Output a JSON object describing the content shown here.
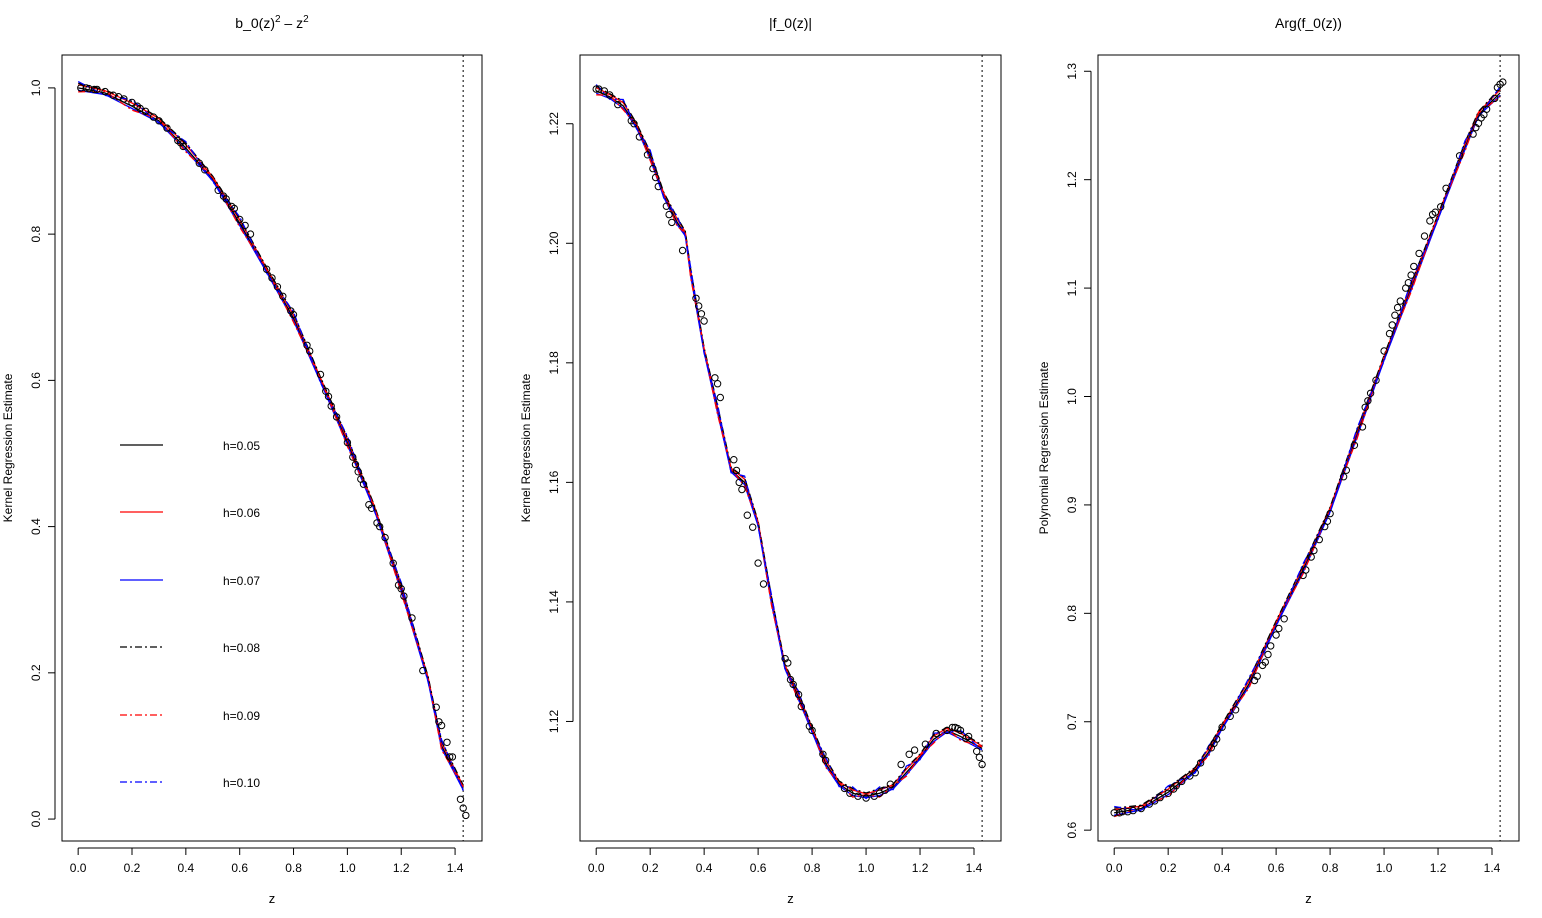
{
  "chart_data": [
    {
      "type": "line",
      "title": "b_0(z)^2 - z^2",
      "xlabel": "z",
      "ylabel": "Kernel Regression Estimate",
      "xlim": [
        -0.06,
        1.5
      ],
      "ylim": [
        -0.03,
        1.045
      ],
      "xticks": [
        "0.0",
        "0.2",
        "0.4",
        "0.6",
        "0.8",
        "1.0",
        "1.2",
        "1.4"
      ],
      "yticks": [
        "0.0",
        "0.2",
        "0.4",
        "0.6",
        "0.8",
        "1.0"
      ],
      "vline": 1.43,
      "legend": {
        "placement": "left-middle",
        "entries": [
          "h=0.05",
          "h=0.06",
          "h=0.07",
          "h=0.08",
          "h=0.09",
          "h=0.10"
        ]
      },
      "series": [
        {
          "name": "h=0.05",
          "color": "#000000",
          "dash": "solid"
        },
        {
          "name": "h=0.06",
          "color": "#ff0000",
          "dash": "solid"
        },
        {
          "name": "h=0.07",
          "color": "#0000ff",
          "dash": "solid"
        },
        {
          "name": "h=0.08",
          "color": "#000000",
          "dash": "dashdot"
        },
        {
          "name": "h=0.09",
          "color": "#ff0000",
          "dash": "dashdot"
        },
        {
          "name": "h=0.10",
          "color": "#0000ff",
          "dash": "dashdot"
        }
      ],
      "curve": {
        "x": [
          0.0,
          0.1,
          0.2,
          0.3,
          0.4,
          0.5,
          0.6,
          0.7,
          0.8,
          0.9,
          1.0,
          1.1,
          1.2,
          1.3,
          1.35,
          1.43
        ],
        "y": [
          1.0,
          0.993,
          0.975,
          0.955,
          0.918,
          0.875,
          0.815,
          0.75,
          0.685,
          0.6,
          0.515,
          0.425,
          0.315,
          0.19,
          0.1,
          0.042
        ]
      },
      "points": [
        [
          0.01,
          1.0
        ],
        [
          0.03,
          1.0
        ],
        [
          0.04,
          0.999
        ],
        [
          0.06,
          0.998
        ],
        [
          0.07,
          0.998
        ],
        [
          0.1,
          0.995
        ],
        [
          0.13,
          0.99
        ],
        [
          0.15,
          0.988
        ],
        [
          0.17,
          0.985
        ],
        [
          0.2,
          0.98
        ],
        [
          0.22,
          0.975
        ],
        [
          0.23,
          0.972
        ],
        [
          0.25,
          0.968
        ],
        [
          0.28,
          0.96
        ],
        [
          0.3,
          0.955
        ],
        [
          0.33,
          0.945
        ],
        [
          0.37,
          0.928
        ],
        [
          0.38,
          0.925
        ],
        [
          0.39,
          0.92
        ],
        [
          0.45,
          0.897
        ],
        [
          0.47,
          0.888
        ],
        [
          0.52,
          0.86
        ],
        [
          0.54,
          0.852
        ],
        [
          0.55,
          0.848
        ],
        [
          0.57,
          0.838
        ],
        [
          0.58,
          0.835
        ],
        [
          0.6,
          0.82
        ],
        [
          0.62,
          0.812
        ],
        [
          0.64,
          0.8
        ],
        [
          0.7,
          0.752
        ],
        [
          0.72,
          0.74
        ],
        [
          0.74,
          0.728
        ],
        [
          0.76,
          0.715
        ],
        [
          0.79,
          0.695
        ],
        [
          0.8,
          0.69
        ],
        [
          0.85,
          0.648
        ],
        [
          0.86,
          0.64
        ],
        [
          0.9,
          0.608
        ],
        [
          0.92,
          0.585
        ],
        [
          0.93,
          0.578
        ],
        [
          0.94,
          0.565
        ],
        [
          0.96,
          0.55
        ],
        [
          1.0,
          0.515
        ],
        [
          1.02,
          0.495
        ],
        [
          1.03,
          0.485
        ],
        [
          1.04,
          0.475
        ],
        [
          1.05,
          0.465
        ],
        [
          1.06,
          0.458
        ],
        [
          1.08,
          0.43
        ],
        [
          1.09,
          0.425
        ],
        [
          1.11,
          0.405
        ],
        [
          1.12,
          0.4
        ],
        [
          1.14,
          0.385
        ],
        [
          1.17,
          0.35
        ],
        [
          1.19,
          0.32
        ],
        [
          1.2,
          0.315
        ],
        [
          1.21,
          0.305
        ],
        [
          1.24,
          0.275
        ],
        [
          1.28,
          0.203
        ],
        [
          1.33,
          0.153
        ],
        [
          1.34,
          0.133
        ],
        [
          1.35,
          0.128
        ],
        [
          1.37,
          0.105
        ],
        [
          1.38,
          0.085
        ],
        [
          1.39,
          0.085
        ],
        [
          1.42,
          0.027
        ],
        [
          1.43,
          0.015
        ],
        [
          1.44,
          0.005
        ]
      ]
    },
    {
      "type": "line",
      "title": "|f_0(z)|",
      "xlabel": "z",
      "ylabel": "Kernel Regression Estimate",
      "xlim": [
        -0.06,
        1.5
      ],
      "ylim": [
        1.1,
        1.2315
      ],
      "xticks": [
        "0.0",
        "0.2",
        "0.4",
        "0.6",
        "0.8",
        "1.0",
        "1.2",
        "1.4"
      ],
      "yticks": [
        "1.12",
        "1.14",
        "1.16",
        "1.18",
        "1.20",
        "1.22"
      ],
      "vline": 1.43,
      "curve": {
        "x": [
          0.0,
          0.05,
          0.1,
          0.15,
          0.2,
          0.25,
          0.3,
          0.33,
          0.35,
          0.4,
          0.45,
          0.5,
          0.55,
          0.6,
          0.65,
          0.7,
          0.75,
          0.8,
          0.85,
          0.9,
          0.95,
          1.0,
          1.05,
          1.1,
          1.15,
          1.2,
          1.25,
          1.3,
          1.35,
          1.43
        ],
        "y": [
          1.2255,
          1.2245,
          1.223,
          1.2195,
          1.2145,
          1.208,
          1.2035,
          1.2015,
          1.195,
          1.182,
          1.172,
          1.162,
          1.16,
          1.153,
          1.14,
          1.129,
          1.124,
          1.1185,
          1.113,
          1.1095,
          1.108,
          1.1075,
          1.108,
          1.109,
          1.1115,
          1.114,
          1.117,
          1.1185,
          1.1175,
          1.1155
        ]
      },
      "points": [
        [
          0.0,
          1.2258
        ],
        [
          0.01,
          1.2258
        ],
        [
          0.03,
          1.2255
        ],
        [
          0.05,
          1.2248
        ],
        [
          0.08,
          1.2232
        ],
        [
          0.13,
          1.2205
        ],
        [
          0.14,
          1.22
        ],
        [
          0.16,
          1.2178
        ],
        [
          0.19,
          1.2148
        ],
        [
          0.21,
          1.2125
        ],
        [
          0.22,
          1.211
        ],
        [
          0.23,
          1.2095
        ],
        [
          0.26,
          1.2062
        ],
        [
          0.27,
          1.2048
        ],
        [
          0.28,
          1.2035
        ],
        [
          0.32,
          1.1988
        ],
        [
          0.37,
          1.1908
        ],
        [
          0.38,
          1.1895
        ],
        [
          0.39,
          1.1882
        ],
        [
          0.4,
          1.187
        ],
        [
          0.44,
          1.1775
        ],
        [
          0.45,
          1.1765
        ],
        [
          0.46,
          1.1742
        ],
        [
          0.51,
          1.1638
        ],
        [
          0.52,
          1.162
        ],
        [
          0.53,
          1.16
        ],
        [
          0.54,
          1.1588
        ],
        [
          0.56,
          1.1545
        ],
        [
          0.58,
          1.1525
        ],
        [
          0.6,
          1.1465
        ],
        [
          0.62,
          1.143
        ],
        [
          0.7,
          1.1305
        ],
        [
          0.71,
          1.1298
        ],
        [
          0.72,
          1.127
        ],
        [
          0.73,
          1.1262
        ],
        [
          0.75,
          1.1245
        ],
        [
          0.76,
          1.1225
        ],
        [
          0.79,
          1.1192
        ],
        [
          0.8,
          1.1185
        ],
        [
          0.84,
          1.1145
        ],
        [
          0.85,
          1.1135
        ],
        [
          0.92,
          1.1088
        ],
        [
          0.94,
          1.108
        ],
        [
          0.97,
          1.1075
        ],
        [
          1.0,
          1.1072
        ],
        [
          1.03,
          1.1075
        ],
        [
          1.05,
          1.108
        ],
        [
          1.07,
          1.1085
        ],
        [
          1.09,
          1.1095
        ],
        [
          1.13,
          1.1128
        ],
        [
          1.16,
          1.1145
        ],
        [
          1.18,
          1.1152
        ],
        [
          1.22,
          1.1162
        ],
        [
          1.26,
          1.118
        ],
        [
          1.3,
          1.1185
        ],
        [
          1.32,
          1.119
        ],
        [
          1.33,
          1.119
        ],
        [
          1.34,
          1.1188
        ],
        [
          1.35,
          1.1185
        ],
        [
          1.37,
          1.1172
        ],
        [
          1.38,
          1.1175
        ],
        [
          1.41,
          1.115
        ],
        [
          1.42,
          1.114
        ],
        [
          1.43,
          1.1128
        ]
      ]
    },
    {
      "type": "line",
      "title": "Arg(f_0(z))",
      "xlabel": "z",
      "ylabel": "Polynomial Regression Estimate",
      "xlim": [
        -0.06,
        1.5
      ],
      "ylim": [
        0.59,
        1.315
      ],
      "xticks": [
        "0.0",
        "0.2",
        "0.4",
        "0.6",
        "0.8",
        "1.0",
        "1.2",
        "1.4"
      ],
      "yticks": [
        "0.6",
        "0.7",
        "0.8",
        "0.9",
        "1.0",
        "1.1",
        "1.2",
        "1.3"
      ],
      "vline": 1.43,
      "curve": {
        "x": [
          0.0,
          0.1,
          0.2,
          0.3,
          0.35,
          0.4,
          0.5,
          0.6,
          0.7,
          0.8,
          0.9,
          1.0,
          1.1,
          1.2,
          1.3,
          1.35,
          1.43
        ],
        "y": [
          0.616,
          0.62,
          0.635,
          0.655,
          0.672,
          0.695,
          0.735,
          0.79,
          0.84,
          0.895,
          0.965,
          1.035,
          1.1,
          1.165,
          1.23,
          1.26,
          1.28
        ]
      },
      "points": [
        [
          0.0,
          0.616
        ],
        [
          0.02,
          0.616
        ],
        [
          0.03,
          0.617
        ],
        [
          0.05,
          0.617
        ],
        [
          0.07,
          0.618
        ],
        [
          0.1,
          0.62
        ],
        [
          0.13,
          0.624
        ],
        [
          0.15,
          0.627
        ],
        [
          0.17,
          0.63
        ],
        [
          0.2,
          0.634
        ],
        [
          0.22,
          0.638
        ],
        [
          0.23,
          0.641
        ],
        [
          0.25,
          0.645
        ],
        [
          0.28,
          0.65
        ],
        [
          0.3,
          0.653
        ],
        [
          0.32,
          0.662
        ],
        [
          0.36,
          0.676
        ],
        [
          0.37,
          0.68
        ],
        [
          0.38,
          0.684
        ],
        [
          0.4,
          0.695
        ],
        [
          0.43,
          0.705
        ],
        [
          0.45,
          0.711
        ],
        [
          0.52,
          0.738
        ],
        [
          0.53,
          0.742
        ],
        [
          0.55,
          0.752
        ],
        [
          0.56,
          0.755
        ],
        [
          0.57,
          0.762
        ],
        [
          0.58,
          0.77
        ],
        [
          0.6,
          0.78
        ],
        [
          0.61,
          0.786
        ],
        [
          0.63,
          0.795
        ],
        [
          0.7,
          0.835
        ],
        [
          0.71,
          0.84
        ],
        [
          0.73,
          0.852
        ],
        [
          0.74,
          0.858
        ],
        [
          0.76,
          0.868
        ],
        [
          0.78,
          0.88
        ],
        [
          0.79,
          0.885
        ],
        [
          0.8,
          0.892
        ],
        [
          0.85,
          0.926
        ],
        [
          0.86,
          0.932
        ],
        [
          0.89,
          0.955
        ],
        [
          0.92,
          0.972
        ],
        [
          0.93,
          0.99
        ],
        [
          0.94,
          0.996
        ],
        [
          0.95,
          1.003
        ],
        [
          0.97,
          1.015
        ],
        [
          1.0,
          1.042
        ],
        [
          1.02,
          1.058
        ],
        [
          1.03,
          1.066
        ],
        [
          1.04,
          1.075
        ],
        [
          1.05,
          1.082
        ],
        [
          1.06,
          1.088
        ],
        [
          1.08,
          1.1
        ],
        [
          1.09,
          1.105
        ],
        [
          1.1,
          1.112
        ],
        [
          1.11,
          1.12
        ],
        [
          1.13,
          1.132
        ],
        [
          1.15,
          1.148
        ],
        [
          1.17,
          1.162
        ],
        [
          1.18,
          1.168
        ],
        [
          1.19,
          1.17
        ],
        [
          1.21,
          1.175
        ],
        [
          1.23,
          1.192
        ],
        [
          1.28,
          1.222
        ],
        [
          1.33,
          1.242
        ],
        [
          1.34,
          1.248
        ],
        [
          1.35,
          1.252
        ],
        [
          1.36,
          1.257
        ],
        [
          1.37,
          1.26
        ],
        [
          1.38,
          1.265
        ],
        [
          1.41,
          1.275
        ],
        [
          1.42,
          1.285
        ],
        [
          1.43,
          1.288
        ],
        [
          1.44,
          1.29
        ]
      ]
    }
  ]
}
